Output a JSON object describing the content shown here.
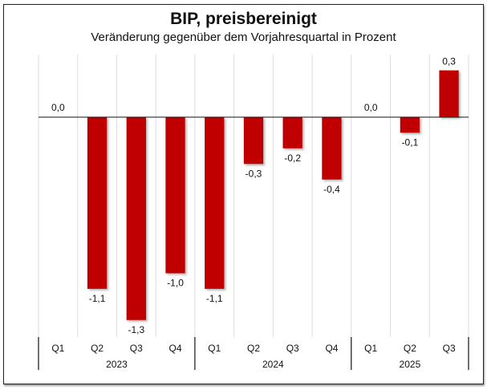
{
  "chart_data": {
    "type": "bar",
    "title": "BIP, preisbereinigt",
    "subtitle": "Veränderung gegenüber dem Vorjahresquartal in Prozent",
    "xlabel": "",
    "ylabel": "",
    "categories": [
      "Q1",
      "Q2",
      "Q3",
      "Q4",
      "Q1",
      "Q2",
      "Q3",
      "Q4",
      "Q1",
      "Q2",
      "Q3"
    ],
    "groups": [
      {
        "label": "2023",
        "count": 4
      },
      {
        "label": "2024",
        "count": 4
      },
      {
        "label": "2025",
        "count": 3
      }
    ],
    "values": [
      0.0,
      -1.1,
      -1.3,
      -1.0,
      -1.1,
      -0.3,
      -0.2,
      -0.4,
      0.0,
      -0.1,
      0.3
    ],
    "data_labels": [
      "0,0",
      "-1,1",
      "-1,3",
      "-1,0",
      "-1,1",
      "-0,3",
      "-0,2",
      "-0,4",
      "0,0",
      "-0,1",
      "0,3"
    ],
    "ylim": [
      -1.3,
      0.3
    ],
    "grid": "vertical",
    "legend": "none",
    "bar_color": "#c00000"
  }
}
